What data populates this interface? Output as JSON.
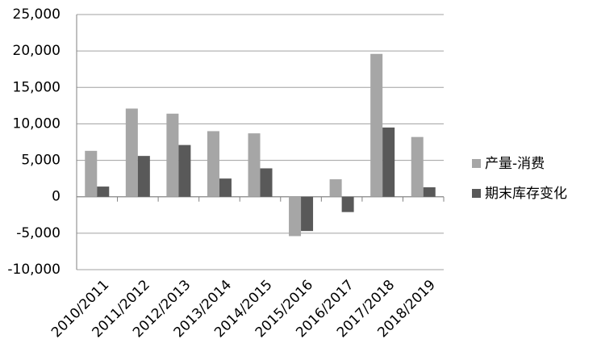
{
  "chart_data": {
    "type": "bar",
    "categories": [
      "2010/2011",
      "2011/2012",
      "2012/2013",
      "2013/2014",
      "2014/2015",
      "2015/2016",
      "2016/2017",
      "2017/2018",
      "2018/2019"
    ],
    "series": [
      {
        "name": "产量-消费",
        "color": "#a6a6a6",
        "values": [
          6300,
          12100,
          11400,
          9000,
          8700,
          -5400,
          2400,
          19600,
          8200
        ]
      },
      {
        "name": "期末库存变化",
        "color": "#595959",
        "values": [
          1400,
          5600,
          7100,
          2500,
          3900,
          -4700,
          -2100,
          9500,
          1300
        ]
      }
    ],
    "ylim": [
      -10000,
      25000
    ],
    "yticks": [
      {
        "value": -10000,
        "label": "-10,000"
      },
      {
        "value": -5000,
        "label": "-5,000"
      },
      0,
      {
        "value": 5000,
        "label": "5,000"
      },
      {
        "value": 10000,
        "label": "10,000"
      },
      {
        "value": 15000,
        "label": "15,000"
      },
      {
        "value": 20000,
        "label": "20,000"
      },
      {
        "value": 25000,
        "label": "25,000"
      }
    ],
    "grid": true,
    "legend": "right"
  }
}
